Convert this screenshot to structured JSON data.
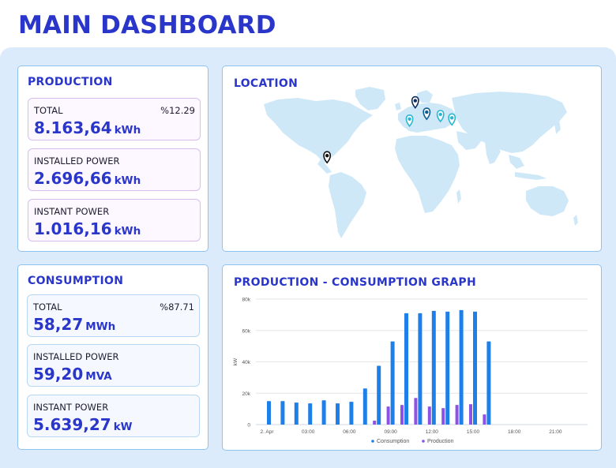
{
  "header": {
    "title": "MAIN DASHBOARD"
  },
  "production": {
    "title": "PRODUCTION",
    "total": {
      "label": "TOTAL",
      "percent": "%12.29",
      "value": "8.163,64",
      "unit": "kWh"
    },
    "installed": {
      "label": "INSTALLED POWER",
      "value": "2.696,66",
      "unit": "kWh"
    },
    "instant": {
      "label": "INSTANT POWER",
      "value": "1.016,16",
      "unit": "kWh"
    }
  },
  "consumption": {
    "title": "CONSUMPTION",
    "total": {
      "label": "TOTAL",
      "percent": "%87.71",
      "value": "58,27",
      "unit": "MWh"
    },
    "installed": {
      "label": "INSTALLED POWER",
      "value": "59,20",
      "unit": "MVA"
    },
    "instant": {
      "label": "INSTANT POWER",
      "value": "5.639,27",
      "unit": "kW"
    }
  },
  "location": {
    "title": "LOCATION",
    "markers": [
      {
        "name": "marker-navy",
        "color": "#0d2b5c",
        "lon": 4,
        "lat": 52
      },
      {
        "name": "marker-dark-teal",
        "color": "#0d5c8f",
        "lon": 14,
        "lat": 42
      },
      {
        "name": "marker-teal",
        "color": "#2bb6cf",
        "lon": 26,
        "lat": 40
      },
      {
        "name": "marker-teal",
        "color": "#2bb6cf",
        "lon": -1,
        "lat": 36
      },
      {
        "name": "marker-teal",
        "color": "#2bb6cf",
        "lon": 36,
        "lat": 37
      },
      {
        "name": "marker-black",
        "color": "#111111",
        "lon": -73,
        "lat": 4
      }
    ]
  },
  "graph": {
    "title": "PRODUCTION - CONSUMPTION GRAPH"
  },
  "colors": {
    "accent": "#2a36c9",
    "consumption": "#1e7fe8",
    "production": "#8c52e6"
  },
  "chart_data": {
    "type": "bar",
    "ylabel": "kW",
    "ylim": [
      0,
      80000
    ],
    "yticks": [
      0,
      20000,
      40000,
      60000,
      80000
    ],
    "ytick_labels": [
      "0",
      "20k",
      "40k",
      "60k",
      "80k"
    ],
    "xtick_labels": [
      "2. Apr",
      "03:00",
      "06:00",
      "09:00",
      "12:00",
      "15:00",
      "18:00",
      "21:00"
    ],
    "categories": [
      "00:00",
      "01:00",
      "02:00",
      "03:00",
      "04:00",
      "05:00",
      "06:00",
      "07:00",
      "08:00",
      "09:00",
      "10:00",
      "11:00",
      "12:00",
      "13:00",
      "14:00",
      "15:00",
      "16:00"
    ],
    "series": [
      {
        "name": "Consumption",
        "values": [
          15000,
          15000,
          14000,
          13500,
          15500,
          13500,
          14500,
          23000,
          37500,
          53000,
          71000,
          71000,
          72500,
          72000,
          73000,
          72000,
          53000
        ]
      },
      {
        "name": "Production",
        "values": [
          0,
          0,
          0,
          0,
          0,
          0,
          0,
          0,
          2500,
          11500,
          12500,
          17000,
          11500,
          10500,
          12500,
          13000,
          6500
        ]
      }
    ],
    "legend": "bottom"
  }
}
